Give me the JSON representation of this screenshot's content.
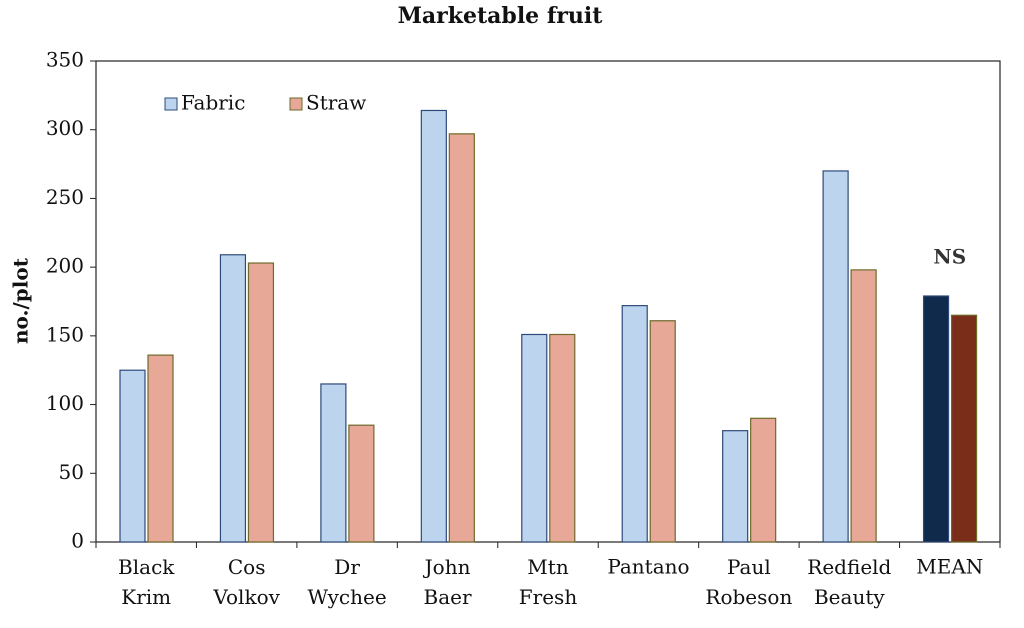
{
  "chart_data": {
    "type": "bar",
    "title": "Marketable fruit",
    "y_label": "no./plot",
    "categories": [
      "Black Krim",
      "Cos Volkov",
      "Dr Wychee",
      "John Baer",
      "Mtn Fresh",
      "Pantano",
      "Paul Robeson",
      "Redfield Beauty",
      "MEAN"
    ],
    "series": [
      {
        "name": "Fabric",
        "color": "#bcd4ee",
        "edge": "#2e4a7a",
        "colors": [
          "#bcd4ee",
          "#bcd4ee",
          "#bcd4ee",
          "#bcd4ee",
          "#bcd4ee",
          "#bcd4ee",
          "#bcd4ee",
          "#bcd4ee",
          "#0f2a4a"
        ],
        "values": [
          125,
          209,
          115,
          314,
          151,
          172,
          81,
          270,
          179
        ]
      },
      {
        "name": "Straw",
        "color": "#e8a898",
        "edge": "#6e6a2a",
        "colors": [
          "#e8a898",
          "#e8a898",
          "#e8a898",
          "#e8a898",
          "#e8a898",
          "#e8a898",
          "#e8a898",
          "#e8a898",
          "#7a2e1a"
        ],
        "values": [
          136,
          203,
          85,
          297,
          151,
          161,
          90,
          198,
          165
        ]
      }
    ],
    "annotation": "NS",
    "ylim": [
      0,
      350
    ],
    "yticks": [
      0,
      50,
      100,
      150,
      200,
      250,
      300,
      350
    ],
    "grid": false,
    "legend": "top-left"
  }
}
